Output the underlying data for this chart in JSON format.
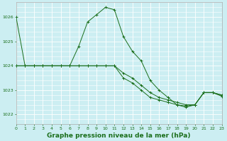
{
  "title": "Graphe pression niveau de la mer (hPa)",
  "bg_color": "#cceef2",
  "grid_color": "#ffffff",
  "line_color": "#1a6e1a",
  "xlim": [
    0,
    23
  ],
  "ylim": [
    1021.6,
    1026.6
  ],
  "yticks": [
    1022,
    1023,
    1024,
    1025,
    1026
  ],
  "yminor_step": 0.2,
  "xticks": [
    0,
    1,
    2,
    3,
    4,
    5,
    6,
    7,
    8,
    9,
    10,
    11,
    12,
    13,
    14,
    15,
    16,
    17,
    18,
    19,
    20,
    21,
    22,
    23
  ],
  "series": [
    {
      "x": [
        0,
        1,
        2,
        3,
        4,
        5,
        6,
        7,
        8,
        9,
        10,
        11,
        12,
        13,
        14,
        15,
        16,
        17,
        18,
        19,
        20,
        21,
        22,
        23
      ],
      "y": [
        1026.0,
        1024.0,
        1024.0,
        1024.0,
        1024.0,
        1024.0,
        1024.0,
        1024.8,
        1025.8,
        1026.1,
        1026.4,
        1026.3,
        1025.2,
        1024.6,
        1024.2,
        1023.4,
        1023.0,
        1022.7,
        1022.4,
        1022.3,
        1022.4,
        1022.9,
        1022.9,
        1022.8
      ]
    },
    {
      "x": [
        0,
        1,
        2,
        3,
        4,
        5,
        6,
        7,
        8,
        9,
        10,
        11,
        12,
        13,
        14,
        15,
        16,
        17,
        18,
        19,
        20,
        21,
        22,
        23
      ],
      "y": [
        1024.0,
        1024.0,
        1024.0,
        1024.0,
        1024.0,
        1024.0,
        1024.0,
        1024.0,
        1024.0,
        1024.0,
        1024.0,
        1024.0,
        1023.7,
        1023.5,
        1023.2,
        1022.9,
        1022.7,
        1022.6,
        1022.5,
        1022.4,
        1022.4,
        1022.9,
        1022.9,
        1022.8
      ]
    },
    {
      "x": [
        0,
        1,
        2,
        3,
        4,
        5,
        6,
        7,
        8,
        9,
        10,
        11,
        12,
        13,
        14,
        15,
        16,
        17,
        18,
        19,
        20,
        21,
        22,
        23
      ],
      "y": [
        1024.0,
        1024.0,
        1024.0,
        1024.0,
        1024.0,
        1024.0,
        1024.0,
        1024.0,
        1024.0,
        1024.0,
        1024.0,
        1024.0,
        1023.5,
        1023.3,
        1023.0,
        1022.7,
        1022.6,
        1022.5,
        1022.4,
        1022.35,
        1022.4,
        1022.9,
        1022.9,
        1022.75
      ]
    }
  ],
  "tick_fontsize": 4.5,
  "title_fontsize": 6.5,
  "linewidth": 0.7,
  "markersize": 2.5,
  "markeredgewidth": 0.7
}
